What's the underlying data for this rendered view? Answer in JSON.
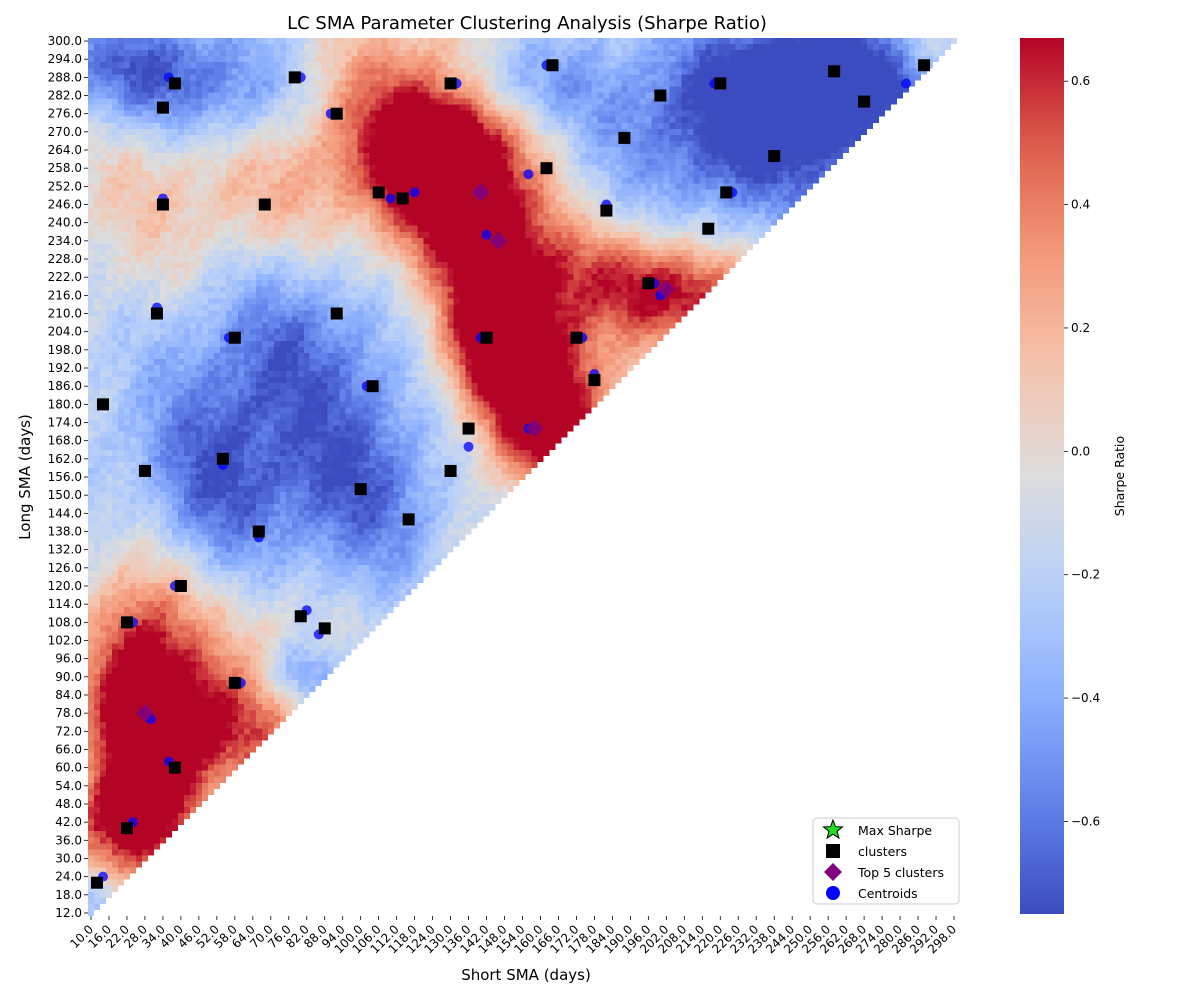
{
  "chart_data": {
    "type": "heatmap",
    "title": "LC SMA Parameter Clustering Analysis (Sharpe Ratio)",
    "xlabel": "Short SMA (days)",
    "ylabel": "Long SMA (days)",
    "x_range": [
      10,
      300
    ],
    "y_range": [
      12,
      300
    ],
    "x_step": 2,
    "y_step": 2,
    "x_tick_step": 6,
    "y_tick_step": 6,
    "colorbar": {
      "label": "Sharpe Ratio",
      "colormap": "coolwarm",
      "vmin": -0.75,
      "vmax": 0.67,
      "ticks": [
        -0.6,
        -0.4,
        -0.2,
        0.0,
        0.2,
        0.4,
        0.6
      ],
      "tick_labels": [
        "−0.6",
        "−0.4",
        "−0.2",
        "0.0",
        "0.2",
        "0.4",
        "0.6"
      ]
    },
    "heat_peaks": [
      {
        "x": 140,
        "y": 240,
        "sx": 18,
        "sy": 42,
        "rot": -0.45,
        "v": 1.05
      },
      {
        "x": 128,
        "y": 262,
        "sx": 14,
        "sy": 14,
        "rot": 0,
        "v": 0.55
      },
      {
        "x": 160,
        "y": 176,
        "sx": 14,
        "sy": 18,
        "rot": -0.3,
        "v": 0.85
      },
      {
        "x": 202,
        "y": 218,
        "sx": 22,
        "sy": 12,
        "rot": 0.2,
        "v": 0.8
      },
      {
        "x": 143,
        "y": 200,
        "sx": 12,
        "sy": 14,
        "rot": 0,
        "v": 0.55
      },
      {
        "x": 28,
        "y": 80,
        "sx": 14,
        "sy": 34,
        "rot": 0,
        "v": 1.1
      },
      {
        "x": 54,
        "y": 72,
        "sx": 18,
        "sy": 14,
        "rot": 0,
        "v": 0.55
      },
      {
        "x": 20,
        "y": 42,
        "sx": 14,
        "sy": 12,
        "rot": 0,
        "v": 0.55
      },
      {
        "x": 30,
        "y": 250,
        "sx": 40,
        "sy": 30,
        "rot": 0,
        "v": 0.3
      },
      {
        "x": 70,
        "y": 255,
        "sx": 30,
        "sy": 25,
        "rot": 0,
        "v": 0.2
      },
      {
        "x": 100,
        "y": 270,
        "sx": 25,
        "sy": 25,
        "rot": 0,
        "v": 0.35
      },
      {
        "x": 230,
        "y": 200,
        "sx": 20,
        "sy": 15,
        "rot": 0,
        "v": 0.2
      },
      {
        "x": 292,
        "y": 298,
        "sx": 10,
        "sy": 6,
        "rot": 0,
        "v": 0.25
      },
      {
        "x": 65,
        "y": 100,
        "sx": 20,
        "sy": 25,
        "rot": 0,
        "v": 0.25
      },
      {
        "x": 235,
        "y": 270,
        "sx": 35,
        "sy": 22,
        "rot": 0,
        "v": -0.7
      },
      {
        "x": 260,
        "y": 290,
        "sx": 30,
        "sy": 15,
        "rot": 0,
        "v": -0.55
      },
      {
        "x": 25,
        "y": 290,
        "sx": 20,
        "sy": 12,
        "rot": 0,
        "v": -0.45
      },
      {
        "x": 60,
        "y": 280,
        "sx": 22,
        "sy": 15,
        "rot": 0,
        "v": -0.45
      },
      {
        "x": 100,
        "y": 150,
        "sx": 20,
        "sy": 25,
        "rot": 0,
        "v": -0.5
      },
      {
        "x": 50,
        "y": 150,
        "sx": 20,
        "sy": 25,
        "rot": 0,
        "v": -0.5
      },
      {
        "x": 80,
        "y": 90,
        "sx": 10,
        "sy": 8,
        "rot": 0,
        "v": -0.45
      },
      {
        "x": 75,
        "y": 200,
        "sx": 25,
        "sy": 25,
        "rot": 0,
        "v": -0.45
      },
      {
        "x": 12,
        "y": 16,
        "sx": 6,
        "sy": 6,
        "rot": 0,
        "v": -0.35
      },
      {
        "x": 150,
        "y": 285,
        "sx": 20,
        "sy": 10,
        "rot": 0,
        "v": -0.3
      }
    ],
    "max_sharpe": [
      {
        "x": 136,
        "y": 256
      }
    ],
    "clusters": [
      [
        12,
        22
      ],
      [
        22,
        40
      ],
      [
        22,
        108
      ],
      [
        32,
        210
      ],
      [
        34,
        246
      ],
      [
        34,
        278
      ],
      [
        38,
        60
      ],
      [
        40,
        120
      ],
      [
        38,
        286
      ],
      [
        28,
        158
      ],
      [
        14,
        180
      ],
      [
        54,
        162
      ],
      [
        58,
        88
      ],
      [
        58,
        202
      ],
      [
        68,
        246
      ],
      [
        66,
        138
      ],
      [
        78,
        288
      ],
      [
        80,
        110
      ],
      [
        88,
        106
      ],
      [
        92,
        276
      ],
      [
        92,
        210
      ],
      [
        100,
        152
      ],
      [
        104,
        186
      ],
      [
        106,
        250
      ],
      [
        116,
        142
      ],
      [
        114,
        248
      ],
      [
        130,
        286
      ],
      [
        130,
        158
      ],
      [
        136,
        172
      ],
      [
        142,
        202
      ],
      [
        162,
        258
      ],
      [
        164,
        292
      ],
      [
        172,
        202
      ],
      [
        178,
        188
      ],
      [
        182,
        244
      ],
      [
        188,
        268
      ],
      [
        196,
        220
      ],
      [
        200,
        282
      ],
      [
        216,
        238
      ],
      [
        220,
        286
      ],
      [
        222,
        250
      ],
      [
        238,
        262
      ],
      [
        258,
        290
      ],
      [
        268,
        280
      ],
      [
        288,
        292
      ]
    ],
    "top5_clusters": [
      [
        28,
        78
      ],
      [
        140,
        250
      ],
      [
        146,
        234
      ],
      [
        158,
        172
      ],
      [
        202,
        218
      ]
    ],
    "centroids": [
      [
        14,
        24
      ],
      [
        24,
        42
      ],
      [
        24,
        108
      ],
      [
        32,
        212
      ],
      [
        34,
        248
      ],
      [
        34,
        278
      ],
      [
        36,
        62
      ],
      [
        38,
        120
      ],
      [
        36,
        288
      ],
      [
        28,
        158
      ],
      [
        14,
        180
      ],
      [
        54,
        160
      ],
      [
        60,
        88
      ],
      [
        56,
        202
      ],
      [
        68,
        246
      ],
      [
        66,
        136
      ],
      [
        80,
        288
      ],
      [
        82,
        112
      ],
      [
        86,
        104
      ],
      [
        90,
        276
      ],
      [
        92,
        210
      ],
      [
        100,
        152
      ],
      [
        102,
        186
      ],
      [
        110,
        248
      ],
      [
        116,
        142
      ],
      [
        118,
        250
      ],
      [
        132,
        286
      ],
      [
        130,
        158
      ],
      [
        136,
        166
      ],
      [
        140,
        202
      ],
      [
        156,
        256
      ],
      [
        162,
        292
      ],
      [
        174,
        202
      ],
      [
        178,
        190
      ],
      [
        182,
        246
      ],
      [
        188,
        268
      ],
      [
        198,
        220
      ],
      [
        200,
        282
      ],
      [
        216,
        238
      ],
      [
        218,
        286
      ],
      [
        224,
        250
      ],
      [
        238,
        262
      ],
      [
        258,
        290
      ],
      [
        268,
        280
      ],
      [
        282,
        286
      ],
      [
        30,
        76
      ],
      [
        142,
        236
      ],
      [
        156,
        172
      ],
      [
        200,
        216
      ]
    ],
    "legend": {
      "position": "lower-right",
      "entries": [
        "Max Sharpe",
        "clusters",
        "Top 5 clusters",
        "Centroids"
      ]
    },
    "colors": {
      "max_sharpe": "#22dd22",
      "clusters": "#000000",
      "top5": "#800080",
      "centroids": "#0000ff"
    }
  }
}
